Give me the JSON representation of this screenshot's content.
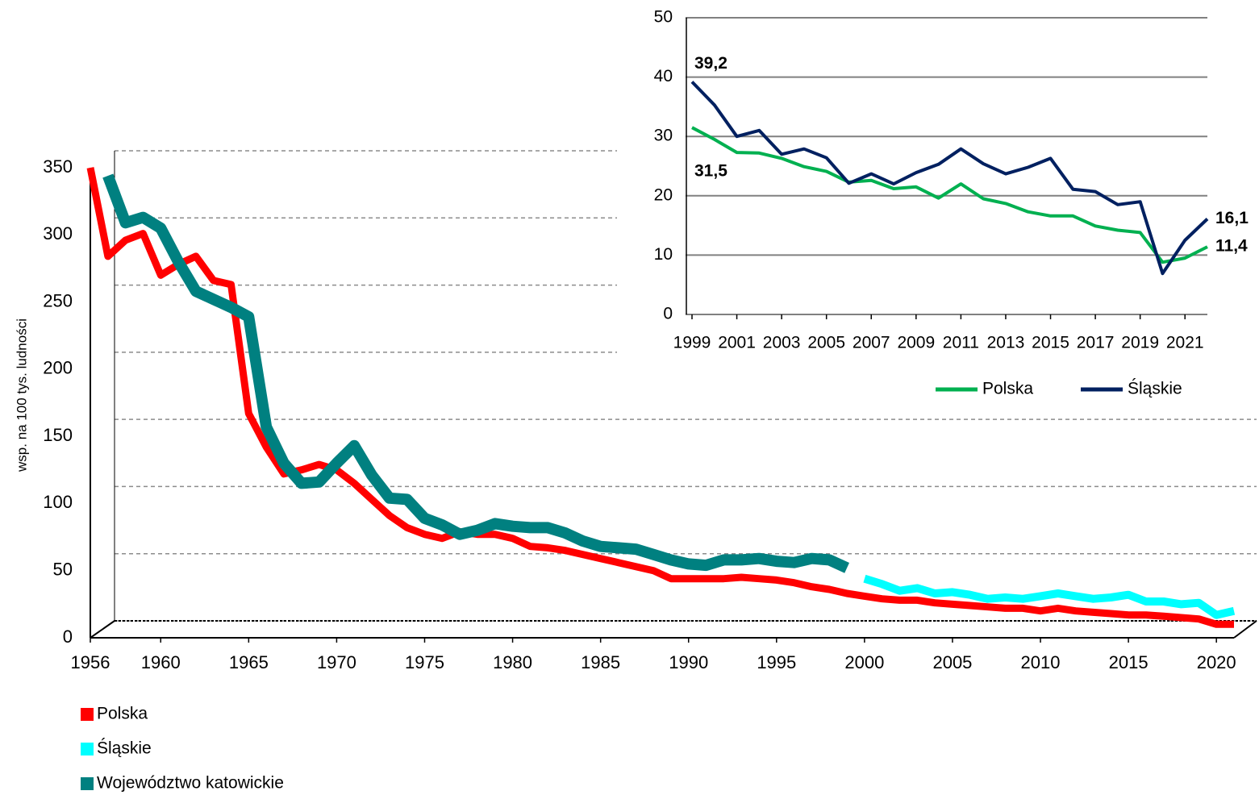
{
  "chart_data": [
    {
      "type": "line",
      "y_label": "wsp. na 100 tys. ludności",
      "x": [
        1956,
        1957,
        1958,
        1959,
        1960,
        1961,
        1962,
        1963,
        1964,
        1965,
        1966,
        1967,
        1968,
        1969,
        1970,
        1971,
        1972,
        1973,
        1974,
        1975,
        1976,
        1977,
        1978,
        1979,
        1980,
        1981,
        1982,
        1983,
        1984,
        1985,
        1986,
        1987,
        1988,
        1989,
        1990,
        1991,
        1992,
        1993,
        1994,
        1995,
        1996,
        1997,
        1998,
        1999,
        2000,
        2001,
        2002,
        2003,
        2004,
        2005,
        2006,
        2007,
        2008,
        2009,
        2010,
        2011,
        2012,
        2013,
        2014,
        2015,
        2016,
        2017,
        2018,
        2019,
        2020,
        2021
      ],
      "xlim": [
        1956,
        2021
      ],
      "xticks": [
        1956,
        1960,
        1965,
        1970,
        1975,
        1980,
        1985,
        1990,
        1995,
        2000,
        2005,
        2010,
        2015,
        2020
      ],
      "ylim": [
        0,
        350
      ],
      "yticks": [
        0,
        50,
        100,
        150,
        200,
        250,
        300,
        350
      ],
      "grid": true,
      "series": [
        {
          "name": "Polska",
          "color": "#ff0000",
          "values": [
            350,
            284,
            296,
            301,
            270,
            278,
            284,
            266,
            263,
            167,
            142,
            122,
            125,
            129,
            125,
            115,
            103,
            91,
            82,
            77,
            74,
            79,
            77,
            77,
            74,
            68,
            67,
            65,
            62,
            59,
            56,
            53,
            50,
            44,
            44,
            44,
            44,
            45,
            44,
            43,
            41,
            38,
            36,
            33,
            31,
            29,
            28,
            28,
            26,
            25,
            24,
            23,
            22,
            22,
            20,
            22,
            20,
            19,
            18,
            17,
            17,
            16,
            15,
            14,
            10,
            10
          ]
        },
        {
          "name": "Śląskie",
          "color": "#00ffff",
          "values": [
            null,
            null,
            null,
            null,
            null,
            null,
            null,
            null,
            null,
            null,
            null,
            null,
            null,
            null,
            null,
            null,
            null,
            null,
            null,
            null,
            null,
            null,
            null,
            null,
            null,
            null,
            null,
            null,
            null,
            null,
            null,
            null,
            null,
            null,
            null,
            null,
            null,
            null,
            null,
            null,
            null,
            null,
            null,
            null,
            44,
            40,
            35,
            37,
            33,
            34,
            32,
            29,
            30,
            29,
            31,
            33,
            31,
            29,
            30,
            32,
            27,
            27,
            25,
            26,
            17,
            20
          ]
        },
        {
          "name": "Województwo katowickie",
          "color": "#008080",
          "values": [
            null,
            344,
            309,
            313,
            305,
            280,
            258,
            252,
            246,
            239,
            157,
            130,
            115,
            116,
            130,
            143,
            121,
            104,
            103,
            89,
            84,
            77,
            80,
            85,
            83,
            82,
            82,
            78,
            72,
            68,
            67,
            66,
            62,
            58,
            55,
            54,
            58,
            58,
            59,
            57,
            56,
            59,
            58,
            52,
            null,
            null,
            null,
            null,
            null,
            null,
            null,
            null,
            null,
            null,
            null,
            null,
            null,
            null,
            null,
            null,
            null,
            null,
            null,
            null,
            null,
            null
          ]
        }
      ]
    },
    {
      "type": "line",
      "x": [
        1999,
        2000,
        2001,
        2002,
        2003,
        2004,
        2005,
        2006,
        2007,
        2008,
        2009,
        2010,
        2011,
        2012,
        2013,
        2014,
        2015,
        2016,
        2017,
        2018,
        2019,
        2020,
        2021,
        2022
      ],
      "xlim": [
        1999,
        2022
      ],
      "xticks": [
        1999,
        2001,
        2003,
        2005,
        2007,
        2009,
        2011,
        2013,
        2015,
        2017,
        2019,
        2021
      ],
      "ylim": [
        0,
        50
      ],
      "yticks": [
        0,
        10,
        20,
        30,
        40,
        50
      ],
      "grid": true,
      "series": [
        {
          "name": "Polska",
          "color": "#00b050",
          "values": [
            31.5,
            29.5,
            27.3,
            27.2,
            26.3,
            24.9,
            24.1,
            22.3,
            22.6,
            21.2,
            21.5,
            19.6,
            22.0,
            19.5,
            18.7,
            17.3,
            16.6,
            16.6,
            14.9,
            14.2,
            13.8,
            8.8,
            9.5,
            11.4
          ],
          "value_labels": [
            "31,5",
            null,
            null,
            null,
            null,
            null,
            null,
            null,
            null,
            null,
            null,
            null,
            null,
            null,
            null,
            null,
            null,
            null,
            null,
            null,
            null,
            null,
            null,
            "11,4"
          ]
        },
        {
          "name": "Śląskie",
          "color": "#002060",
          "values": [
            39.2,
            35.3,
            30.0,
            31.0,
            27.0,
            27.9,
            26.4,
            22.1,
            23.7,
            22.0,
            23.9,
            25.3,
            27.9,
            25.4,
            23.7,
            24.8,
            26.3,
            21.1,
            20.7,
            18.5,
            19.0,
            6.9,
            12.5,
            16.1
          ],
          "value_labels": [
            "39,2",
            null,
            null,
            null,
            null,
            null,
            null,
            null,
            null,
            null,
            null,
            null,
            null,
            null,
            null,
            null,
            null,
            null,
            null,
            null,
            null,
            null,
            null,
            "16,1"
          ]
        }
      ]
    }
  ]
}
